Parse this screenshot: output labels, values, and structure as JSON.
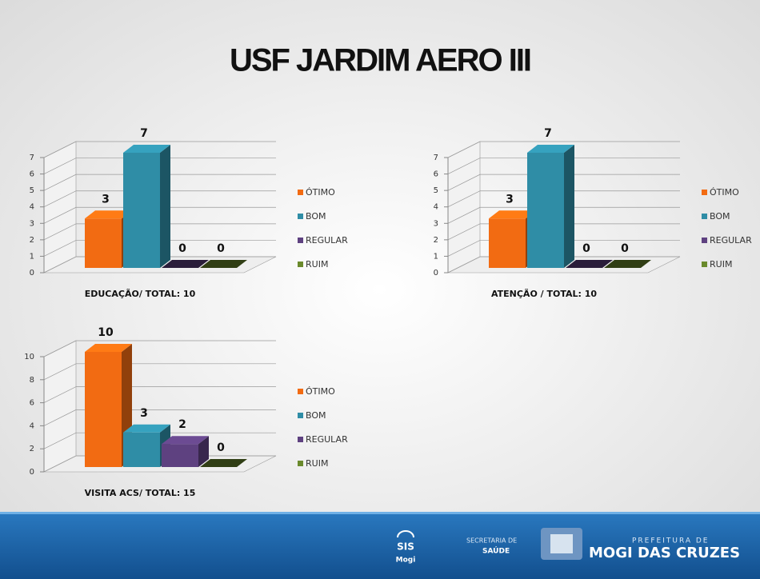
{
  "title": "USF JARDIM AERO III",
  "chart_data": [
    {
      "type": "bar3d",
      "xlabel": "EDUCAÇÃO/ TOTAL: 10",
      "categories": [
        "ÓTIMO",
        "BOM",
        "REGULAR",
        "RUIM"
      ],
      "values": [
        3,
        7,
        0,
        0
      ],
      "colors": [
        "#f26b12",
        "#2f8da6",
        "#5e4180",
        "#6a8a2c"
      ],
      "ylim": [
        0,
        7
      ],
      "yticks": [
        0,
        1,
        2,
        3,
        4,
        5,
        6,
        7
      ],
      "grid": true,
      "legend": "right"
    },
    {
      "type": "bar3d",
      "xlabel": "ATENÇÃO / TOTAL: 10",
      "categories": [
        "ÓTIMO",
        "BOM",
        "REGULAR",
        "RUIM"
      ],
      "values": [
        3,
        7,
        0,
        0
      ],
      "colors": [
        "#f26b12",
        "#2f8da6",
        "#5e4180",
        "#6a8a2c"
      ],
      "ylim": [
        0,
        7
      ],
      "yticks": [
        0,
        1,
        2,
        3,
        4,
        5,
        6,
        7
      ],
      "grid": true,
      "legend": "right"
    },
    {
      "type": "bar3d",
      "xlabel": "VISITA ACS/ TOTAL: 15",
      "categories": [
        "ÓTIMO",
        "BOM",
        "REGULAR",
        "RUIM"
      ],
      "values": [
        10,
        3,
        2,
        0
      ],
      "colors": [
        "#f26b12",
        "#2f8da6",
        "#5e4180",
        "#6a8a2c"
      ],
      "ylim": [
        0,
        10
      ],
      "yticks": [
        0,
        2,
        4,
        6,
        8,
        10
      ],
      "grid": true,
      "legend": "right"
    }
  ],
  "footer": {
    "sis": "SIS",
    "mogi": "Mogi",
    "secretaria": "SECRETARIA DE",
    "saude": "SAÚDE",
    "prefeitura": "PREFEITURA DE",
    "city": "MOGI DAS CRUZES"
  }
}
